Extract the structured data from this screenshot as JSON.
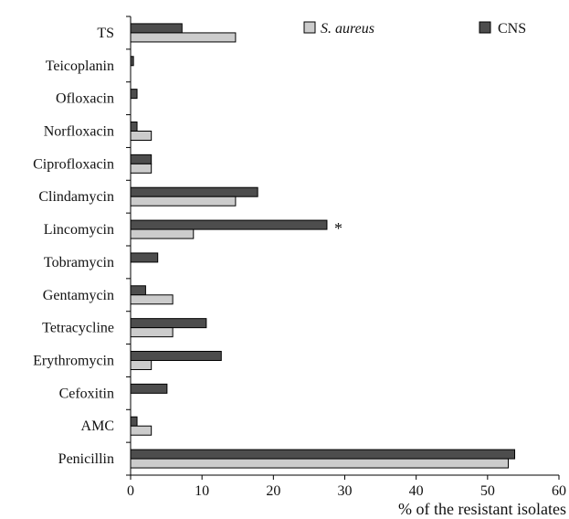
{
  "chart_data": {
    "type": "bar",
    "orientation": "horizontal",
    "xlabel": "% of the resistant isolates",
    "ylabel": "",
    "xlim": [
      0,
      60
    ],
    "xticks": [
      "0",
      "10",
      "20",
      "30",
      "40",
      "50",
      "60"
    ],
    "grid": false,
    "legend_position": "top",
    "categories": [
      "TS",
      "Teicoplanin",
      "Ofloxacin",
      "Norfloxacin",
      "Ciprofloxacin",
      "Clindamycin",
      "Lincomycin",
      "Tobramycin",
      "Gentamycin",
      "Tetracycline",
      "Erythromycin",
      "Cefoxitin",
      "AMC",
      "Penicillin"
    ],
    "series": [
      {
        "name": "S. aureus",
        "color": "#cccccc",
        "values": [
          14.7,
          0,
          0,
          2.9,
          2.9,
          14.7,
          8.8,
          0,
          5.9,
          5.9,
          2.9,
          0,
          2.9,
          52.9
        ]
      },
      {
        "name": "CNS",
        "color": "#4d4d4d",
        "values": [
          7.2,
          0.4,
          0.9,
          0.9,
          2.9,
          17.8,
          27.5,
          3.8,
          2.1,
          10.6,
          12.7,
          5.1,
          0.9,
          53.8
        ]
      }
    ],
    "annotations": [
      {
        "category": "Lincomycin",
        "text": "*"
      }
    ]
  }
}
